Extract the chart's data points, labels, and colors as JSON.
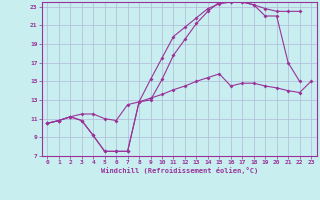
{
  "xlabel": "Windchill (Refroidissement éolien,°C)",
  "xlim": [
    -0.5,
    23.5
  ],
  "ylim": [
    7,
    23.5
  ],
  "xticks": [
    0,
    1,
    2,
    3,
    4,
    5,
    6,
    7,
    8,
    9,
    10,
    11,
    12,
    13,
    14,
    15,
    16,
    17,
    18,
    19,
    20,
    21,
    22,
    23
  ],
  "yticks": [
    7,
    9,
    11,
    13,
    15,
    17,
    19,
    21,
    23
  ],
  "bg_color": "#c8eef0",
  "grid_color": "#b0b8d8",
  "line_color": "#993399",
  "curve1_x": [
    0,
    1,
    2,
    3,
    4,
    5,
    6,
    7,
    8,
    9,
    10,
    11,
    12,
    13,
    14,
    15,
    16,
    17,
    18,
    19,
    20,
    21,
    22,
    23
  ],
  "curve1_y": [
    10.5,
    10.8,
    11.2,
    11.5,
    11.5,
    11.0,
    10.8,
    12.5,
    12.8,
    13.2,
    13.6,
    14.1,
    14.5,
    15.0,
    15.4,
    15.8,
    14.5,
    14.8,
    14.8,
    14.5,
    14.3,
    14.0,
    13.8,
    15.0
  ],
  "curve2_x": [
    0,
    1,
    2,
    3,
    4,
    5,
    6,
    7,
    8,
    9,
    10,
    11,
    12,
    13,
    14,
    15,
    16,
    17,
    18,
    19,
    20,
    21,
    22,
    23
  ],
  "curve2_y": [
    10.5,
    10.8,
    11.2,
    10.8,
    9.2,
    7.5,
    7.5,
    7.5,
    12.8,
    15.2,
    17.5,
    19.8,
    20.8,
    21.8,
    22.8,
    23.3,
    23.5,
    23.5,
    23.2,
    22.0,
    22.0,
    17.0,
    15.0,
    null
  ],
  "curve3_x": [
    0,
    1,
    2,
    3,
    4,
    5,
    6,
    7,
    8,
    9,
    10,
    11,
    12,
    13,
    14,
    15,
    16,
    17,
    18,
    19,
    20,
    21,
    22,
    23
  ],
  "curve3_y": [
    10.5,
    10.8,
    11.2,
    10.8,
    9.2,
    7.5,
    7.5,
    7.5,
    12.8,
    13.0,
    15.2,
    17.8,
    19.5,
    21.2,
    22.5,
    23.5,
    23.5,
    23.5,
    23.2,
    22.8,
    22.5,
    22.5,
    22.5,
    null
  ]
}
